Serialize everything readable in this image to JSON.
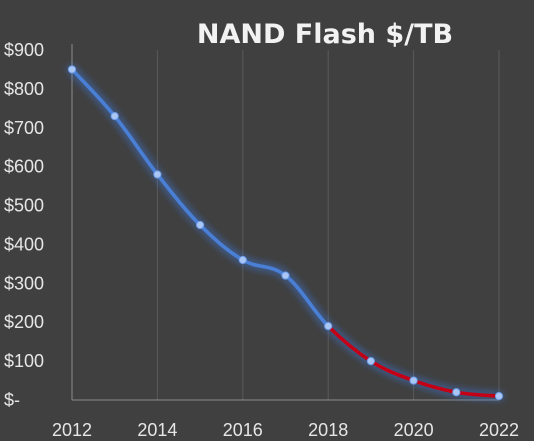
{
  "chart_data": {
    "type": "line",
    "title": "NAND Flash $/TB",
    "xlabel": "",
    "ylabel": "",
    "x": [
      2012,
      2013,
      2014,
      2015,
      2016,
      2017,
      2018,
      2019,
      2020,
      2021,
      2022
    ],
    "x_ticks": [
      "2012",
      "2014",
      "2016",
      "2018",
      "2020",
      "2022"
    ],
    "x_tick_values": [
      2012,
      2014,
      2016,
      2018,
      2020,
      2022
    ],
    "y_ticks": [
      "$-",
      "$100",
      "$200",
      "$300",
      "$400",
      "$500",
      "$600",
      "$700",
      "$800",
      "$900"
    ],
    "y_tick_values": [
      0,
      100,
      200,
      300,
      400,
      500,
      600,
      700,
      800,
      900
    ],
    "xlim": [
      2012,
      2022
    ],
    "ylim": [
      0,
      900
    ],
    "grid": "vertical",
    "legend": "none",
    "smooth": true,
    "series": [
      {
        "values": [
          850,
          730,
          580,
          450,
          360,
          320,
          190,
          100,
          50,
          20,
          10
        ],
        "color": "#4a7fd6",
        "projection_from_index": 6,
        "projection_color": "#c40016"
      }
    ],
    "colors": {
      "background": "#404040",
      "marker": "#a9c6f5",
      "glow": "#3d7df0"
    }
  }
}
